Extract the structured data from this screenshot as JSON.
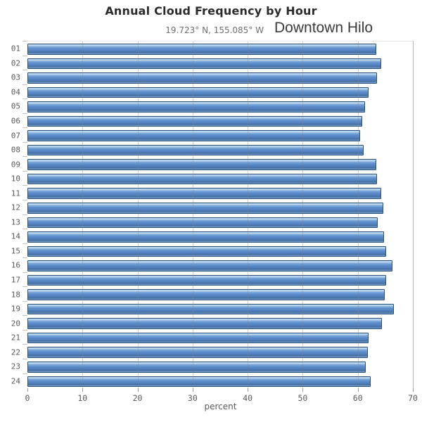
{
  "header": {
    "title": "Annual Cloud Frequency by Hour",
    "subtitle": "19.723° N, 155.085° W",
    "location": "Downtown Hilo"
  },
  "chart_data": {
    "type": "bar",
    "orientation": "horizontal",
    "title": "Annual Cloud Frequency by Hour",
    "subtitle": "19.723° N, 155.085° W",
    "annotation": "Downtown Hilo",
    "categories": [
      "01",
      "02",
      "03",
      "04",
      "05",
      "06",
      "07",
      "08",
      "09",
      "10",
      "11",
      "12",
      "13",
      "14",
      "15",
      "16",
      "17",
      "18",
      "19",
      "20",
      "21",
      "22",
      "23",
      "24"
    ],
    "values": [
      63.4,
      64.3,
      63.5,
      62.0,
      61.3,
      60.8,
      60.4,
      61.0,
      63.3,
      63.5,
      64.3,
      64.6,
      63.6,
      64.8,
      65.1,
      66.3,
      65.1,
      64.9,
      66.5,
      64.4,
      61.9,
      61.8,
      61.5,
      62.3
    ],
    "xlabel": "percent",
    "ylabel": "",
    "xlim": [
      0,
      70
    ],
    "xticks": [
      0,
      10,
      20,
      30,
      40,
      50,
      60,
      70
    ],
    "grid": true,
    "legend": "none",
    "bar_fill_color": "#5d8cc9",
    "bar_border_color": "#2b5178",
    "gridline_color": "#c9c9c9",
    "text_color": "#595959"
  }
}
